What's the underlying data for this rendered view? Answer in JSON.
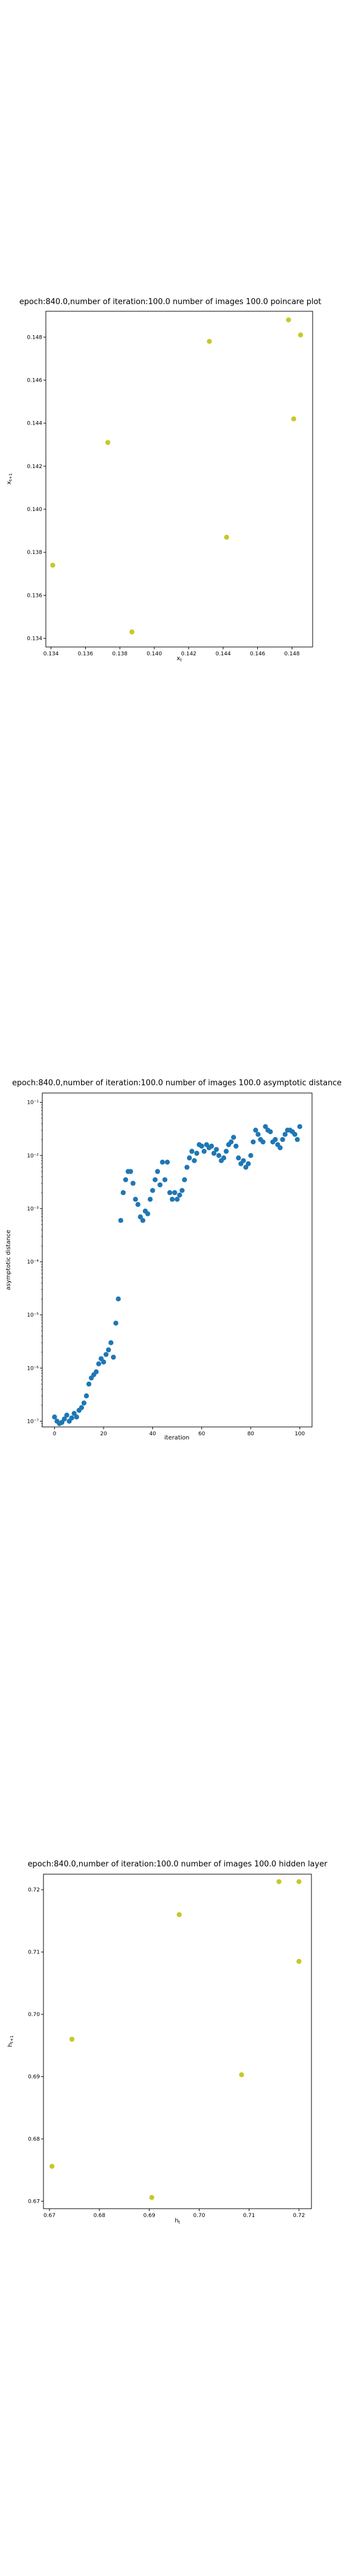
{
  "chart_data": [
    {
      "type": "scatter",
      "title": "epoch:840.0,number of iteration:100.0  number of images 100.0 poincare plot",
      "xlabel": "x_t",
      "ylabel": "x_{t+1}",
      "xlim": [
        0.1337,
        0.1492
      ],
      "ylim": [
        0.1336,
        0.1492
      ],
      "xticks": [
        0.134,
        0.136,
        0.138,
        0.14,
        0.142,
        0.144,
        0.146,
        0.148
      ],
      "yticks": [
        0.134,
        0.136,
        0.138,
        0.14,
        0.142,
        0.144,
        0.146,
        0.148
      ],
      "tick_labels_x": [
        "0.134",
        "0.136",
        "0.138",
        "0.140",
        "0.142",
        "0.144",
        "0.146",
        "0.148"
      ],
      "tick_labels_y": [
        "0.134",
        "0.136",
        "0.138",
        "0.140",
        "0.142",
        "0.144",
        "0.146",
        "0.148"
      ],
      "marker_color": "#c8c828",
      "points": [
        [
          0.1341,
          0.1374
        ],
        [
          0.1373,
          0.1431
        ],
        [
          0.1387,
          0.1343
        ],
        [
          0.1432,
          0.1478
        ],
        [
          0.1442,
          0.1387
        ],
        [
          0.1478,
          0.1488
        ],
        [
          0.1485,
          0.1481
        ],
        [
          0.1481,
          0.1442
        ]
      ]
    },
    {
      "type": "scatter",
      "title": "epoch:840.0,number of iteration:100.0  number of images 100.0 asymptotic distance",
      "xlabel": "iteration",
      "ylabel": "asymptotic distance",
      "yscale": "log",
      "xlim": [
        -5,
        105
      ],
      "ylim": [
        7.8e-08,
        0.15
      ],
      "xticks": [
        0,
        20,
        40,
        60,
        80,
        100
      ],
      "tick_labels_x": [
        "0",
        "20",
        "40",
        "60",
        "80",
        "100"
      ],
      "yticks": [
        1e-07,
        1e-06,
        1e-05,
        0.0001,
        0.001,
        0.01,
        0.1
      ],
      "tick_labels_y": [
        "10⁻⁷",
        "10⁻⁶",
        "10⁻⁵",
        "10⁻⁴",
        "10⁻³",
        "10⁻²",
        "10⁻¹"
      ],
      "marker_color": "#1f77b4",
      "x": [
        0,
        1,
        2,
        3,
        4,
        5,
        6,
        7,
        8,
        9,
        10,
        11,
        12,
        13,
        14,
        15,
        16,
        17,
        18,
        19,
        20,
        21,
        22,
        23,
        24,
        25,
        26,
        27,
        28,
        29,
        30,
        31,
        32,
        33,
        34,
        35,
        36,
        37,
        38,
        39,
        40,
        41,
        42,
        43,
        44,
        45,
        46,
        47,
        48,
        49,
        50,
        51,
        52,
        53,
        54,
        55,
        56,
        57,
        58,
        59,
        60,
        61,
        62,
        63,
        64,
        65,
        66,
        67,
        68,
        69,
        70,
        71,
        72,
        73,
        74,
        75,
        76,
        77,
        78,
        79,
        80,
        81,
        82,
        83,
        84,
        85,
        86,
        87,
        88,
        89,
        90,
        91,
        92,
        93,
        94,
        95,
        96,
        97,
        98,
        99,
        100
      ],
      "y": [
        1.2e-07,
        1e-07,
        9e-08,
        9.5e-08,
        1.1e-07,
        1.3e-07,
        1e-07,
        1.15e-07,
        1.4e-07,
        1.2e-07,
        1.6e-07,
        1.8e-07,
        2.2e-07,
        3e-07,
        5e-07,
        6.5e-07,
        7.5e-07,
        8.5e-07,
        1.2e-06,
        1.5e-06,
        1.3e-06,
        1.8e-06,
        2.2e-06,
        3e-06,
        1.6e-06,
        7e-06,
        2e-05,
        0.0006,
        0.002,
        0.0035,
        0.005,
        0.005,
        0.003,
        0.0015,
        0.0012,
        0.0007,
        0.0006,
        0.0009,
        0.0008,
        0.0015,
        0.0022,
        0.0035,
        0.005,
        0.0028,
        0.0075,
        0.0035,
        0.0075,
        0.002,
        0.0015,
        0.002,
        0.0015,
        0.0018,
        0.0022,
        0.0035,
        0.006,
        0.009,
        0.012,
        0.008,
        0.011,
        0.016,
        0.015,
        0.012,
        0.016,
        0.014,
        0.015,
        0.011,
        0.013,
        0.01,
        0.008,
        0.009,
        0.012,
        0.016,
        0.018,
        0.022,
        0.015,
        0.009,
        0.007,
        0.008,
        0.006,
        0.007,
        0.01,
        0.018,
        0.03,
        0.025,
        0.02,
        0.018,
        0.035,
        0.03,
        0.028,
        0.018,
        0.02,
        0.016,
        0.014,
        0.02,
        0.025,
        0.03,
        0.03,
        0.028,
        0.025,
        0.02,
        0.035
      ]
    },
    {
      "type": "scatter",
      "title": "epoch:840.0,number of iteration:100.0  number of images 100.0 hidden layer",
      "xlabel": "h_t",
      "ylabel": "h_{t+1}",
      "xlim": [
        0.6688,
        0.7225
      ],
      "ylim": [
        0.6688,
        0.7225
      ],
      "xticks": [
        0.67,
        0.68,
        0.69,
        0.7,
        0.71,
        0.72
      ],
      "yticks": [
        0.67,
        0.68,
        0.69,
        0.7,
        0.71,
        0.72
      ],
      "tick_labels_x": [
        "0.67",
        "0.68",
        "0.69",
        "0.70",
        "0.71",
        "0.72"
      ],
      "tick_labels_y": [
        "0.67",
        "0.68",
        "0.69",
        "0.70",
        "0.71",
        "0.72"
      ],
      "marker_color": "#c8c828",
      "points": [
        [
          0.6705,
          0.6756
        ],
        [
          0.6745,
          0.696
        ],
        [
          0.6905,
          0.6706
        ],
        [
          0.696,
          0.716
        ],
        [
          0.7085,
          0.6903
        ],
        [
          0.716,
          0.7213
        ],
        [
          0.72,
          0.7213
        ],
        [
          0.72,
          0.7085
        ]
      ]
    }
  ]
}
